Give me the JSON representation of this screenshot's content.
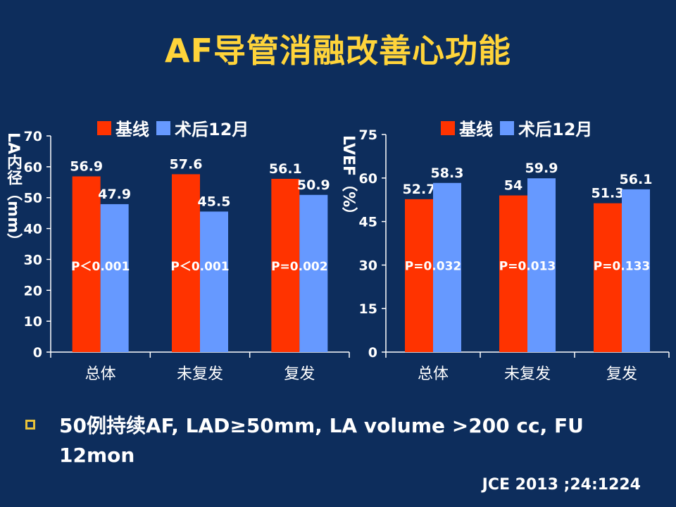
{
  "slide": {
    "title": "AF导管消融改善心功能",
    "bullet": "50例持续AF, LAD≥50mm, LA volume >200 cc, FU 12mon",
    "citation": "JCE 2013 ;24:1224"
  },
  "colors": {
    "background": "#0d2d5c",
    "title": "#ffd43a",
    "baseline": "#ff3300",
    "followup": "#6699ff"
  },
  "legend": {
    "baseline": "基线",
    "followup": "术后12月"
  },
  "chart_data": [
    {
      "type": "bar",
      "ylabel": "LA内径（mm）",
      "categories": [
        "总体",
        "未复发",
        "复发"
      ],
      "ylim": [
        0,
        70
      ],
      "yticks": [
        0,
        10,
        20,
        30,
        40,
        50,
        60,
        70
      ],
      "series": [
        {
          "name": "基线",
          "values": [
            56.9,
            57.6,
            56.1
          ],
          "labels": [
            "56.9",
            "57.6",
            "56.1"
          ]
        },
        {
          "name": "术后12月",
          "values": [
            47.9,
            45.5,
            50.9
          ],
          "labels": [
            "47.9",
            "45.5",
            "50.9"
          ]
        }
      ],
      "annotations": [
        "P＜0.001",
        "P＜0.001",
        "P=0.002"
      ],
      "legend": "top",
      "grid": false
    },
    {
      "type": "bar",
      "ylabel": "LVEF（%）",
      "categories": [
        "总体",
        "未复发",
        "复发"
      ],
      "ylim": [
        0,
        75
      ],
      "yticks": [
        0,
        15,
        30,
        45,
        60,
        75
      ],
      "series": [
        {
          "name": "基线",
          "values": [
            52.7,
            54,
            51.3
          ],
          "labels": [
            "52.7",
            "54",
            "51.3"
          ]
        },
        {
          "name": "术后12月",
          "values": [
            58.3,
            59.9,
            56.1
          ],
          "labels": [
            "58.3",
            "59.9",
            "56.1"
          ]
        }
      ],
      "annotations": [
        "P=0.032",
        "P=0.013",
        "P=0.133"
      ],
      "legend": "top",
      "grid": false
    }
  ]
}
